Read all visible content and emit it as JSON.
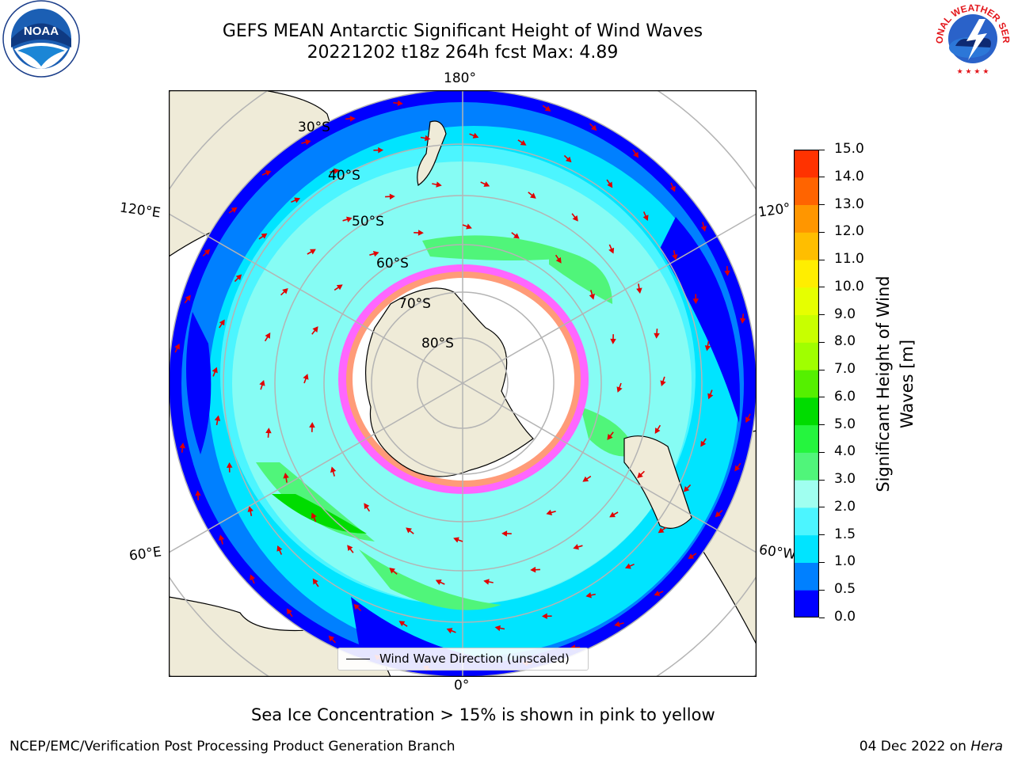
{
  "header": {
    "title_line1": "GEFS MEAN Antarctic Significant Height of Wind Waves",
    "title_line2": "20221202 t18z 264h fcst   Max: 4.89"
  },
  "logos": {
    "left": "NOAA logo",
    "left_text": "NOAA",
    "right": "National Weather Service logo",
    "right_text": "NATIONAL WEATHER SERVICE"
  },
  "map": {
    "projection": "south polar stereographic",
    "longitude_labels": {
      "top": "180°",
      "upper_left": "120°E",
      "upper_right": "120°",
      "lower_left": "60°E",
      "lower_right": "60°W",
      "bottom": "0°"
    },
    "latitude_labels": [
      "30°S",
      "40°S",
      "50°S",
      "60°S",
      "70°S",
      "80°S"
    ],
    "legend_label": "Wind Wave Direction (unscaled)",
    "colors": {
      "land": "#efebd8",
      "sea_ice": "#ffffff",
      "arrows": "#e00000",
      "grid": "#b4b4b4"
    }
  },
  "colorbar": {
    "title_line1": "Significant Height of Wind",
    "title_line2": "Waves [m]",
    "ticks": [
      "0.0",
      "0.5",
      "1.0",
      "1.5",
      "2.0",
      "3.0",
      "4.0",
      "5.0",
      "6.0",
      "7.0",
      "8.0",
      "9.0",
      "10.0",
      "11.0",
      "12.0",
      "13.0",
      "14.0",
      "15.0"
    ],
    "colors": [
      "#0000ff",
      "#0080ff",
      "#00e4ff",
      "#4cf5ff",
      "#a0fff0",
      "#50f57a",
      "#25f53e",
      "#00dc00",
      "#55f000",
      "#a0ff00",
      "#c8ff00",
      "#e6ff00",
      "#ffee00",
      "#ffbe00",
      "#ff9600",
      "#ff6400",
      "#ff3200"
    ]
  },
  "footer": {
    "note": "Sea Ice Concentration > 15% is shown in pink to yellow",
    "credit": "NCEP/EMC/Verification Post Processing Product Generation Branch",
    "date": "04 Dec 2022 on",
    "machine": "Hera"
  }
}
